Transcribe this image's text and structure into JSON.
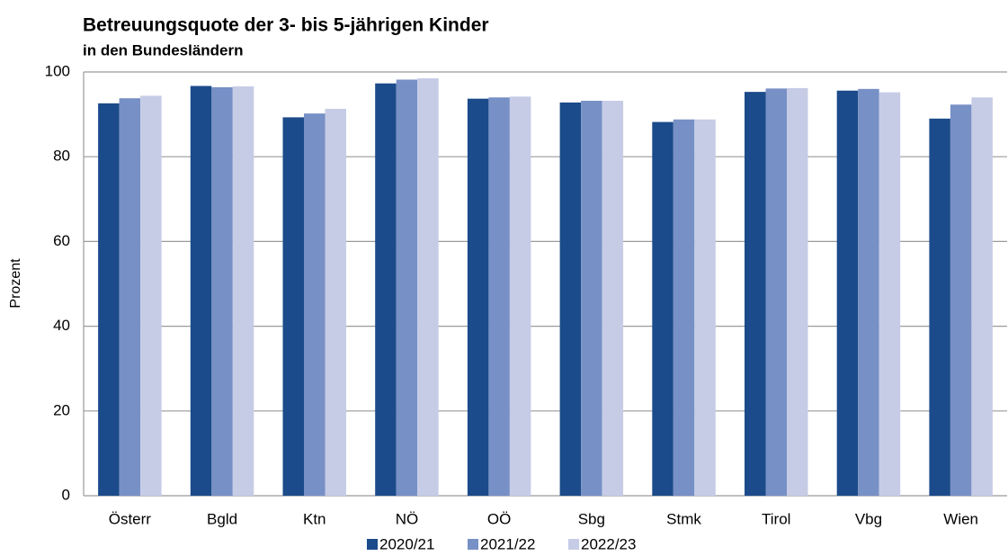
{
  "chart_data": {
    "type": "bar",
    "title": "Betreuungsquote der 3- bis 5-jährigen Kinder",
    "subtitle": "in den Bundesländern",
    "y_label": "Prozent",
    "categories": [
      "Österr",
      "Bgld",
      "Ktn",
      "NÖ",
      "OÖ",
      "Sbg",
      "Stmk",
      "Tirol",
      "Vbg",
      "Wien"
    ],
    "series": [
      {
        "name": "2020/21",
        "color": "#1b4b8a",
        "values": [
          92.6,
          96.7,
          89.3,
          97.3,
          93.7,
          92.8,
          88.2,
          95.3,
          95.6,
          89.0
        ]
      },
      {
        "name": "2021/22",
        "color": "#7790c6",
        "values": [
          93.8,
          96.4,
          90.2,
          98.2,
          94.0,
          93.2,
          88.8,
          96.1,
          96.0,
          92.3
        ]
      },
      {
        "name": "2022/23",
        "color": "#c6cce6",
        "values": [
          94.4,
          96.6,
          91.3,
          98.5,
          94.2,
          93.2,
          88.8,
          96.2,
          95.2,
          94.0
        ]
      }
    ],
    "ylim": [
      0,
      100
    ],
    "yticks": [
      0,
      20,
      40,
      60,
      80,
      100
    ],
    "grid": true,
    "legend": "bottom"
  }
}
